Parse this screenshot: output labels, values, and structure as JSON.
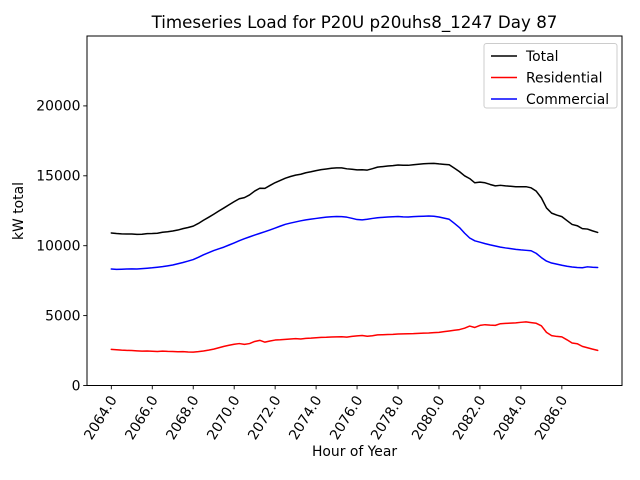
{
  "window": {
    "background": "#ffffff"
  },
  "chart_data": {
    "type": "line",
    "title": "Timeseries Load for P20U p20uhs8_1247  Day 87",
    "xlabel": "Hour of Year",
    "ylabel": "kW total",
    "xlim": [
      2062.8125,
      2088.9375
    ],
    "ylim": [
      0,
      25000
    ],
    "grid": false,
    "legend_position": "upper right",
    "x_start": 2064.0,
    "x_step": 0.25,
    "x_ticks": [
      2064,
      2066,
      2068,
      2070,
      2072,
      2074,
      2076,
      2078,
      2080,
      2082,
      2084,
      2086
    ],
    "x_tick_labels": [
      "2064.0",
      "2066.0",
      "2068.0",
      "2070.0",
      "2072.0",
      "2074.0",
      "2076.0",
      "2078.0",
      "2080.0",
      "2082.0",
      "2084.0",
      "2086.0"
    ],
    "x_tick_rotation_deg": 58,
    "y_ticks": [
      0,
      5000,
      10000,
      15000,
      20000
    ],
    "y_tick_labels": [
      "0",
      "5000",
      "10000",
      "15000",
      "20000"
    ],
    "series": [
      {
        "name": "Total",
        "color": "#000000",
        "values": [
          10910,
          10870,
          10850,
          10840,
          10840,
          10810,
          10820,
          10860,
          10870,
          10890,
          10960,
          11000,
          11050,
          11120,
          11220,
          11300,
          11400,
          11590,
          11820,
          12030,
          12250,
          12480,
          12700,
          12930,
          13150,
          13360,
          13440,
          13630,
          13910,
          14110,
          14100,
          14310,
          14510,
          14670,
          14830,
          14950,
          15050,
          15110,
          15220,
          15290,
          15370,
          15440,
          15490,
          15540,
          15570,
          15570,
          15500,
          15470,
          15420,
          15430,
          15410,
          15510,
          15620,
          15660,
          15700,
          15730,
          15770,
          15750,
          15750,
          15790,
          15830,
          15860,
          15880,
          15890,
          15850,
          15820,
          15790,
          15550,
          15300,
          15000,
          14800,
          14500,
          14550,
          14500,
          14380,
          14280,
          14320,
          14280,
          14250,
          14220,
          14220,
          14220,
          14140,
          13900,
          13420,
          12700,
          12330,
          12190,
          12080,
          11800,
          11520,
          11430,
          11220,
          11190,
          11060,
          10950
        ]
      },
      {
        "name": "Residential",
        "color": "#ff0000",
        "values": [
          2580,
          2560,
          2530,
          2510,
          2500,
          2480,
          2460,
          2470,
          2450,
          2430,
          2460,
          2440,
          2430,
          2410,
          2420,
          2400,
          2390,
          2420,
          2470,
          2530,
          2600,
          2700,
          2800,
          2880,
          2950,
          3000,
          2940,
          3000,
          3150,
          3230,
          3100,
          3180,
          3250,
          3270,
          3300,
          3330,
          3350,
          3330,
          3370,
          3390,
          3420,
          3440,
          3450,
          3470,
          3480,
          3490,
          3460,
          3510,
          3550,
          3580,
          3520,
          3560,
          3620,
          3630,
          3650,
          3660,
          3680,
          3690,
          3700,
          3710,
          3730,
          3750,
          3760,
          3780,
          3800,
          3850,
          3900,
          3950,
          4000,
          4100,
          4250,
          4150,
          4300,
          4350,
          4320,
          4300,
          4420,
          4440,
          4460,
          4480,
          4520,
          4550,
          4500,
          4450,
          4270,
          3800,
          3570,
          3510,
          3480,
          3270,
          3040,
          2990,
          2800,
          2700,
          2600,
          2510
        ]
      },
      {
        "name": "Commercial",
        "color": "#0000ff",
        "values": [
          8330,
          8310,
          8320,
          8330,
          8340,
          8330,
          8360,
          8390,
          8420,
          8460,
          8500,
          8560,
          8620,
          8710,
          8800,
          8900,
          9010,
          9170,
          9350,
          9500,
          9650,
          9780,
          9900,
          10050,
          10200,
          10360,
          10500,
          10630,
          10760,
          10880,
          11000,
          11130,
          11260,
          11400,
          11530,
          11620,
          11700,
          11780,
          11850,
          11900,
          11950,
          12000,
          12040,
          12070,
          12090,
          12080,
          12040,
          11960,
          11870,
          11850,
          11890,
          11950,
          12000,
          12030,
          12050,
          12070,
          12090,
          12060,
          12050,
          12080,
          12100,
          12110,
          12120,
          12110,
          12050,
          11970,
          11890,
          11600,
          11300,
          10900,
          10550,
          10350,
          10250,
          10150,
          10060,
          9980,
          9900,
          9840,
          9790,
          9740,
          9700,
          9670,
          9640,
          9450,
          9150,
          8900,
          8760,
          8680,
          8600,
          8530,
          8480,
          8440,
          8420,
          8490,
          8460,
          8440
        ]
      }
    ],
    "legend": [
      {
        "label": "Total",
        "color": "#000000"
      },
      {
        "label": "Residential",
        "color": "#ff0000"
      },
      {
        "label": "Commercial",
        "color": "#0000ff"
      }
    ]
  }
}
